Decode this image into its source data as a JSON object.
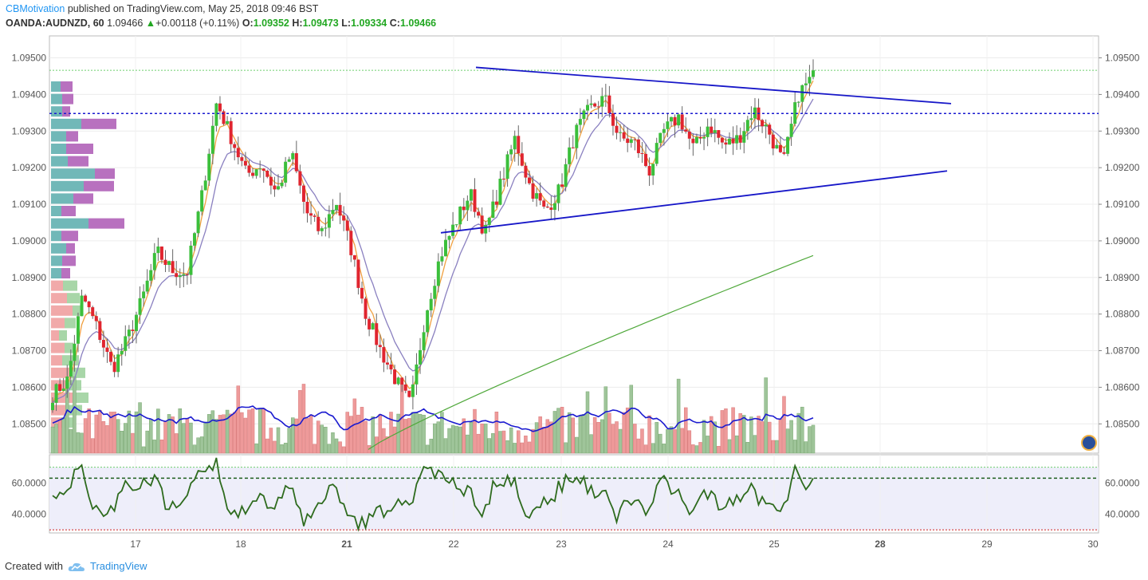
{
  "header": {
    "author": "CBMotivation",
    "published_text": "published on TradingView.com, May 25, 2018 09:46 BST",
    "symbol": "OANDA:AUDNZD, 60",
    "last": "1.09466",
    "arrow": "▲",
    "change": "+0.00118 (+0.11%)",
    "o_label": "O:",
    "o_value": "1.09352",
    "h_label": "H:",
    "h_value": "1.09473",
    "l_label": "L:",
    "l_value": "1.09334",
    "c_label": "C:",
    "c_value": "1.09466"
  },
  "footer": {
    "created_with": "Created with",
    "brand": "TradingView"
  },
  "colors": {
    "bull": "#3bbf3b",
    "bear": "#e0252f",
    "trend": "#1717c8",
    "ema_fast": "#f0a040",
    "ema_slow": "#8a80c0",
    "ma_long": "#4fa83a",
    "vol_up": "#9fc59a",
    "vol_down": "#ee9a9a",
    "vol_ma": "#1a1ad0",
    "rsi": "#2e6b1e",
    "rsi_band": "#eeeefa"
  },
  "chart_data": {
    "type": "candlestick",
    "price_axis_ticks": [
      "1.09500",
      "1.09400",
      "1.09300",
      "1.09200",
      "1.09100",
      "1.09000",
      "1.08900",
      "1.08800",
      "1.08700",
      "1.08600",
      "1.08500"
    ],
    "price_ylim": [
      1.0842,
      1.0956
    ],
    "time_axis_ticks": [
      "17",
      "18",
      "21",
      "22",
      "23",
      "24",
      "25",
      "28",
      "29",
      "30"
    ],
    "time_axis_bold": [
      "21",
      "28"
    ],
    "rsi_axis_ticks": [
      "60.0000",
      "40.0000"
    ],
    "rsi_ylim": [
      28,
      78
    ],
    "levels": {
      "resistance_dotted": 1.09466,
      "support_dashed": 1.09348,
      "rsi_upper": 70,
      "rsi_mid_dashed": 63,
      "rsi_lower": 30
    },
    "trendlines": [
      {
        "name": "upper",
        "from": [
          "day 22.2",
          1.09474
        ],
        "to": [
          "day 26.7",
          1.09375
        ]
      },
      {
        "name": "lower",
        "from": [
          "day 21.9",
          1.09022
        ],
        "to": [
          "day 26.7",
          1.09191
        ]
      }
    ],
    "session_close": [
      1.0858,
      1.0862,
      1.0885,
      1.0876,
      1.0865,
      1.0873,
      1.0884,
      1.0897,
      1.0892,
      1.0891,
      1.0912,
      1.0938,
      1.0928,
      1.0918,
      1.0921,
      1.0913,
      1.0924,
      1.0908,
      1.0902,
      1.0911,
      1.0898,
      1.088,
      1.087,
      1.0862,
      1.0855,
      1.088,
      1.0896,
      1.0905,
      1.0913,
      1.0902,
      1.0915,
      1.0928,
      1.0915,
      1.0908,
      1.0914,
      1.0929,
      1.0936,
      1.0939,
      1.0928,
      1.0927,
      1.0919,
      1.093,
      1.0934,
      1.0925,
      1.0932,
      1.0926,
      1.0928,
      1.0936,
      1.093,
      1.0921,
      1.094,
      1.0945
    ]
  }
}
